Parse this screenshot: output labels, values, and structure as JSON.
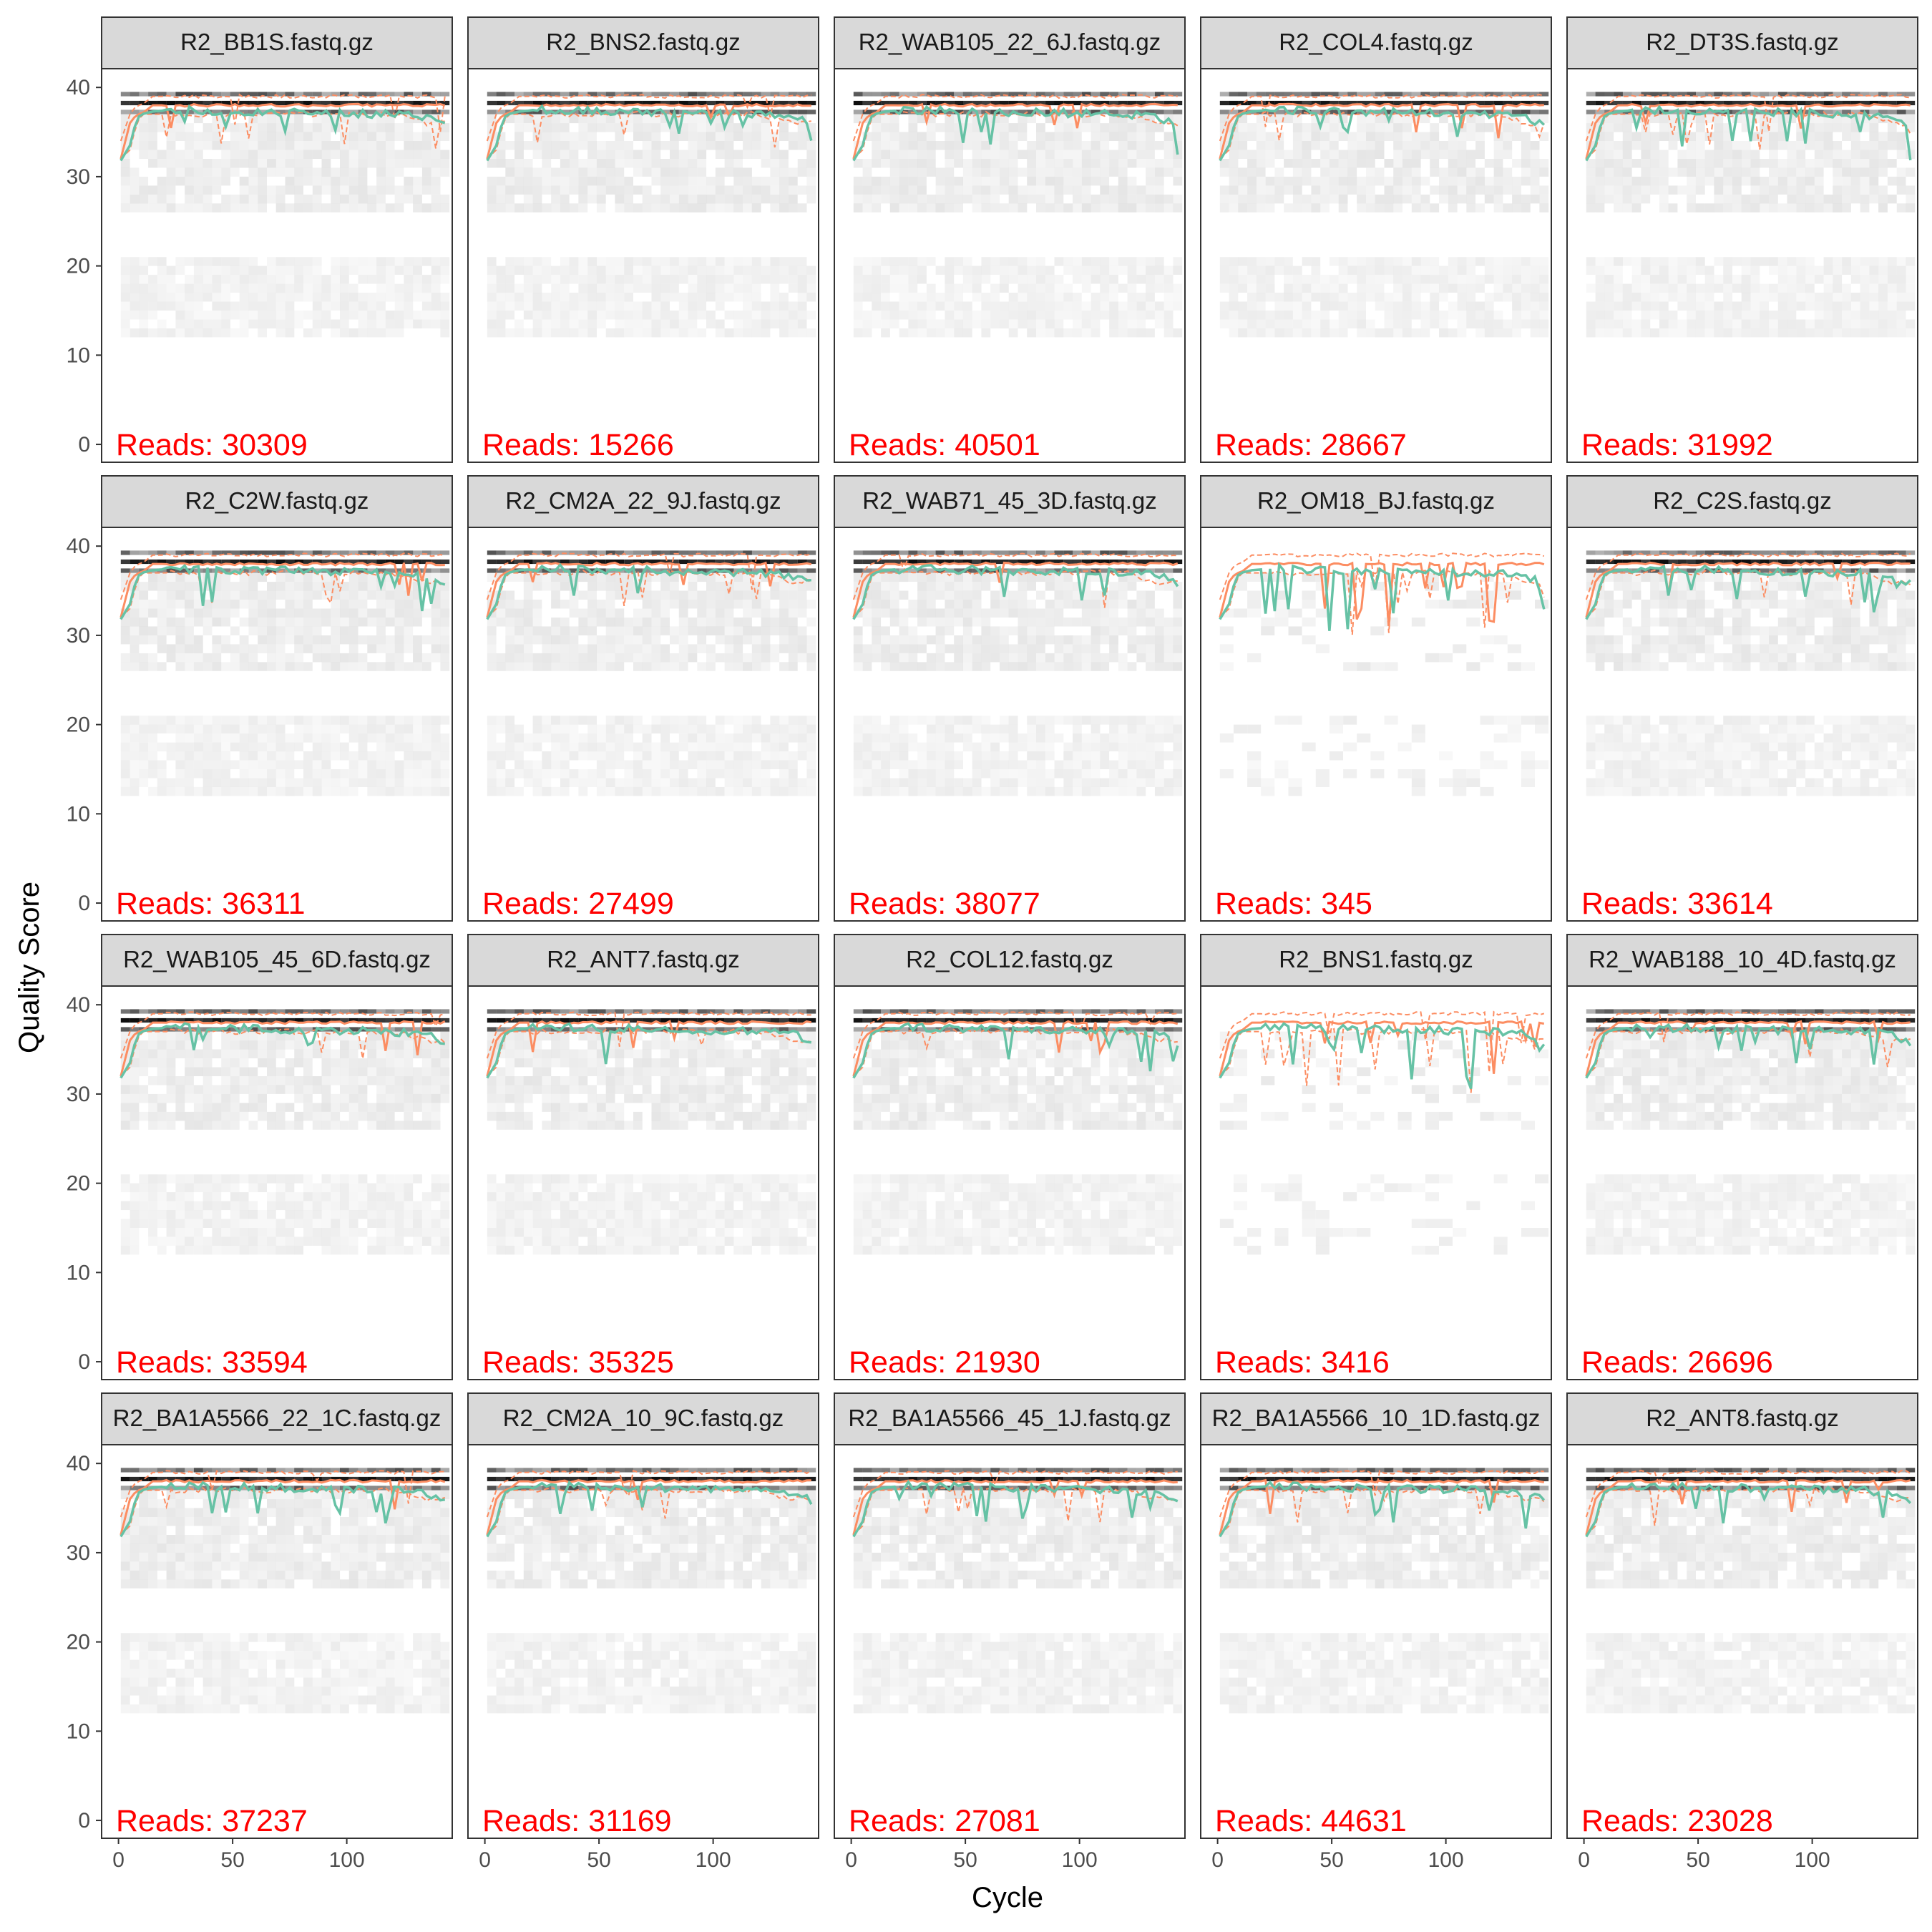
{
  "chart_data": {
    "type": "line",
    "xlabel": "Cycle",
    "ylabel": "Quality Score",
    "xlim": [
      0,
      143
    ],
    "ylim": [
      0,
      41
    ],
    "xticks": [
      0,
      50,
      100
    ],
    "yticks": [
      0,
      10,
      20,
      30,
      40
    ],
    "reads_prefix": "Reads: ",
    "colors": {
      "mean": "#66c2a5",
      "quartile": "#fc8d62",
      "median_quartile": "#fc8d62",
      "reads_label": "#ff0000",
      "strip_fill": "#d9d9d9",
      "heatmap_dark": "#000000"
    },
    "grid": false,
    "panels": [
      {
        "file": "R2_BB1S.fastq.gz",
        "reads": "30309"
      },
      {
        "file": "R2_BNS2.fastq.gz",
        "reads": "15266"
      },
      {
        "file": "R2_WAB105_22_6J.fastq.gz",
        "reads": "40501"
      },
      {
        "file": "R2_COL4.fastq.gz",
        "reads": "28667"
      },
      {
        "file": "R2_DT3S.fastq.gz",
        "reads": "31992"
      },
      {
        "file": "R2_C2W.fastq.gz",
        "reads": "36311"
      },
      {
        "file": "R2_CM2A_22_9J.fastq.gz",
        "reads": "27499"
      },
      {
        "file": "R2_WAB71_45_3D.fastq.gz",
        "reads": "38077"
      },
      {
        "file": "R2_OM18_BJ.fastq.gz",
        "reads": "345"
      },
      {
        "file": "R2_C2S.fastq.gz",
        "reads": "33614"
      },
      {
        "file": "R2_WAB105_45_6D.fastq.gz",
        "reads": "33594"
      },
      {
        "file": "R2_ANT7.fastq.gz",
        "reads": "35325"
      },
      {
        "file": "R2_COL12.fastq.gz",
        "reads": "21930"
      },
      {
        "file": "R2_BNS1.fastq.gz",
        "reads": "3416"
      },
      {
        "file": "R2_WAB188_10_4D.fastq.gz",
        "reads": "26696"
      },
      {
        "file": "R2_BA1A5566_22_1C.fastq.gz",
        "reads": "37237"
      },
      {
        "file": "R2_CM2A_10_9C.fastq.gz",
        "reads": "31169"
      },
      {
        "file": "R2_BA1A5566_45_1J.fastq.gz",
        "reads": "27081"
      },
      {
        "file": "R2_BA1A5566_10_1D.fastq.gz",
        "reads": "44631"
      },
      {
        "file": "R2_ANT8.fastq.gz",
        "reads": "23028"
      }
    ],
    "summary_profile": {
      "cycle": [
        1,
        5,
        8,
        10,
        15,
        25,
        40,
        60,
        80,
        100,
        120,
        135,
        143
      ],
      "mean": [
        31.8,
        33.5,
        36.5,
        37.0,
        37.3,
        37.5,
        37.4,
        37.3,
        37.2,
        37.1,
        37.0,
        36.7,
        35.8
      ],
      "median": [
        32,
        36,
        37,
        37,
        38,
        38,
        38,
        38,
        38,
        38,
        38,
        38,
        38
      ],
      "q25": [
        32,
        33,
        36,
        37,
        37,
        37,
        37,
        37,
        37,
        37,
        37,
        36,
        36
      ],
      "q75": [
        34,
        37,
        38,
        38,
        39,
        39,
        39,
        39,
        39,
        39,
        39,
        39,
        39
      ]
    }
  }
}
